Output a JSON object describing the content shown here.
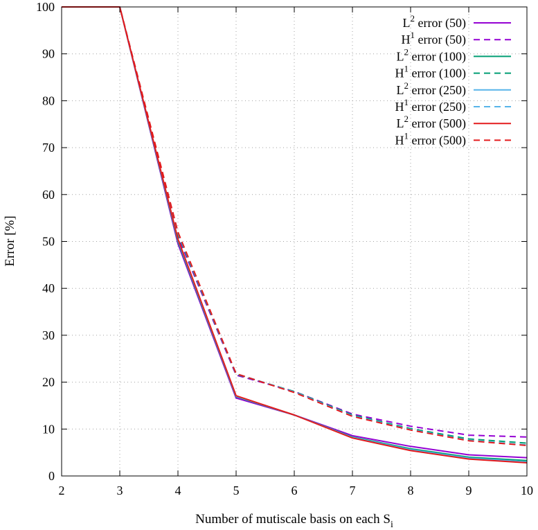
{
  "chart_data": {
    "type": "line",
    "title": "",
    "xlabel": "Number of mutiscale basis on each S",
    "xlabel_subscript": "i",
    "ylabel": "Error [%]",
    "xlim": [
      2,
      10
    ],
    "ylim": [
      0,
      100
    ],
    "xticks": [
      "2",
      "3",
      "4",
      "5",
      "6",
      "7",
      "8",
      "9",
      "10"
    ],
    "yticks": [
      "0",
      "10",
      "20",
      "30",
      "40",
      "50",
      "60",
      "70",
      "80",
      "90",
      "100"
    ],
    "grid": true,
    "legend_position": "top-right",
    "x": [
      2,
      3,
      4,
      5,
      6,
      7,
      8,
      9,
      10
    ],
    "series": [
      {
        "prefix": "L",
        "sup": "2",
        "suffix": " error (50)",
        "color": "#9400d3",
        "dash": "solid",
        "values": [
          100,
          100,
          49.5,
          16.6,
          13.0,
          8.6,
          6.3,
          4.5,
          3.9
        ]
      },
      {
        "prefix": "H",
        "sup": "1",
        "suffix": " error (50)",
        "color": "#9400d3",
        "dash": "dashed",
        "values": [
          100,
          100,
          51,
          21.5,
          18.0,
          13.2,
          10.6,
          8.7,
          8.3
        ]
      },
      {
        "prefix": "L",
        "sup": "2",
        "suffix": " error (100)",
        "color": "#009e73",
        "dash": "solid",
        "values": [
          100,
          100,
          50,
          16.9,
          13.0,
          8.3,
          5.8,
          4.0,
          3.3
        ]
      },
      {
        "prefix": "H",
        "sup": "1",
        "suffix": " error (100)",
        "color": "#009e73",
        "dash": "dashed",
        "values": [
          100,
          100,
          51.5,
          21.7,
          18.0,
          13.0,
          10.1,
          7.9,
          7.0
        ]
      },
      {
        "prefix": "L",
        "sup": "2",
        "suffix": " error (250)",
        "color": "#56b4e9",
        "dash": "solid",
        "values": [
          100,
          100,
          50.3,
          17.0,
          13.0,
          8.2,
          5.6,
          3.8,
          3.0
        ]
      },
      {
        "prefix": "H",
        "sup": "1",
        "suffix": " error (250)",
        "color": "#56b4e9",
        "dash": "dashed",
        "values": [
          100,
          100,
          51.8,
          21.8,
          17.9,
          12.8,
          9.9,
          7.6,
          6.6
        ]
      },
      {
        "prefix": "L",
        "sup": "2",
        "suffix": " error (500)",
        "color": "#e41a1c",
        "dash": "solid",
        "values": [
          100,
          100,
          50.5,
          17.1,
          13.0,
          8.1,
          5.4,
          3.6,
          2.8
        ]
      },
      {
        "prefix": "H",
        "sup": "1",
        "suffix": " error (500)",
        "color": "#e41a1c",
        "dash": "dashed",
        "values": [
          100,
          100,
          52,
          21.8,
          17.8,
          12.7,
          9.8,
          7.5,
          6.5
        ]
      }
    ]
  }
}
